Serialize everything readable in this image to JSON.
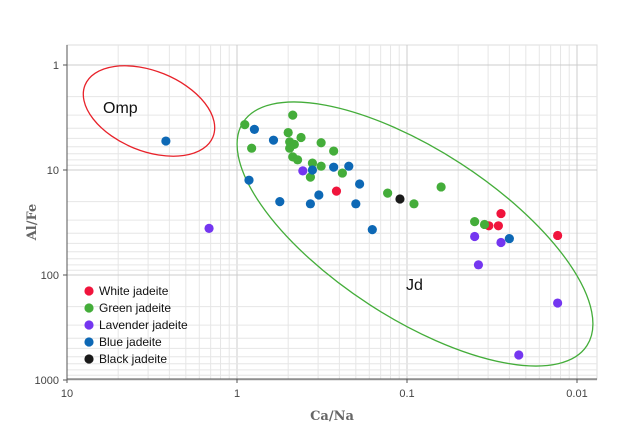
{
  "chart_data": {
    "type": "scatter",
    "xlabel": "Ca/Na",
    "ylabel": "Al/Fe",
    "x_scale": "log",
    "x_reversed": true,
    "xlim": [
      10,
      0.01
    ],
    "y_scale": "log",
    "y_reversed": true,
    "ylim": [
      1,
      1000
    ],
    "x_ticks": [
      "10",
      "1",
      "0.1",
      "0.01"
    ],
    "y_ticks": [
      "1",
      "10",
      "100",
      "1000"
    ],
    "grid": true,
    "legend_position": "bottom-left",
    "annotations": [
      "Omp",
      "Jd"
    ],
    "series": [
      {
        "name": "White jadeite",
        "color": "#f0143c",
        "points": [
          [
            0.26,
            15.9
          ],
          [
            0.033,
            34
          ],
          [
            0.029,
            34
          ],
          [
            0.028,
            26
          ],
          [
            0.013,
            42
          ]
        ]
      },
      {
        "name": "Green jadeite",
        "color": "#44ad3a",
        "points": [
          [
            0.47,
            3.0
          ],
          [
            0.9,
            3.7
          ],
          [
            0.5,
            4.4
          ],
          [
            0.42,
            4.9
          ],
          [
            0.49,
            5.4
          ],
          [
            0.46,
            5.7
          ],
          [
            0.49,
            6.2
          ],
          [
            0.82,
            6.2
          ],
          [
            0.32,
            5.5
          ],
          [
            0.27,
            6.6
          ],
          [
            0.47,
            7.5
          ],
          [
            0.44,
            8.0
          ],
          [
            0.36,
            8.6
          ],
          [
            0.32,
            9.2
          ],
          [
            0.37,
            11.7
          ],
          [
            0.24,
            10.7
          ],
          [
            0.13,
            16.6
          ],
          [
            0.091,
            21
          ],
          [
            0.063,
            14.5
          ],
          [
            0.04,
            31
          ],
          [
            0.035,
            33
          ]
        ]
      },
      {
        "name": "Lavender jadeite",
        "color": "#7436f0",
        "points": [
          [
            1.46,
            36
          ],
          [
            0.41,
            10.2
          ],
          [
            0.04,
            43
          ],
          [
            0.028,
            49
          ],
          [
            0.038,
            80
          ],
          [
            0.013,
            185
          ],
          [
            0.022,
            578
          ]
        ]
      },
      {
        "name": "Blue jadeite",
        "color": "#0d68b5",
        "points": [
          [
            2.62,
            5.3
          ],
          [
            0.79,
            4.1
          ],
          [
            0.61,
            5.2
          ],
          [
            0.36,
            10
          ],
          [
            0.27,
            9.4
          ],
          [
            0.22,
            9.2
          ],
          [
            0.85,
            12.5
          ],
          [
            0.19,
            13.6
          ],
          [
            0.33,
            17.3
          ],
          [
            0.56,
            20
          ],
          [
            0.37,
            21
          ],
          [
            0.2,
            21
          ],
          [
            0.16,
            37
          ],
          [
            0.025,
            45
          ]
        ]
      },
      {
        "name": "Black jadeite",
        "color": "#1a1a1a",
        "points": [
          [
            0.11,
            18.9
          ]
        ]
      }
    ]
  }
}
